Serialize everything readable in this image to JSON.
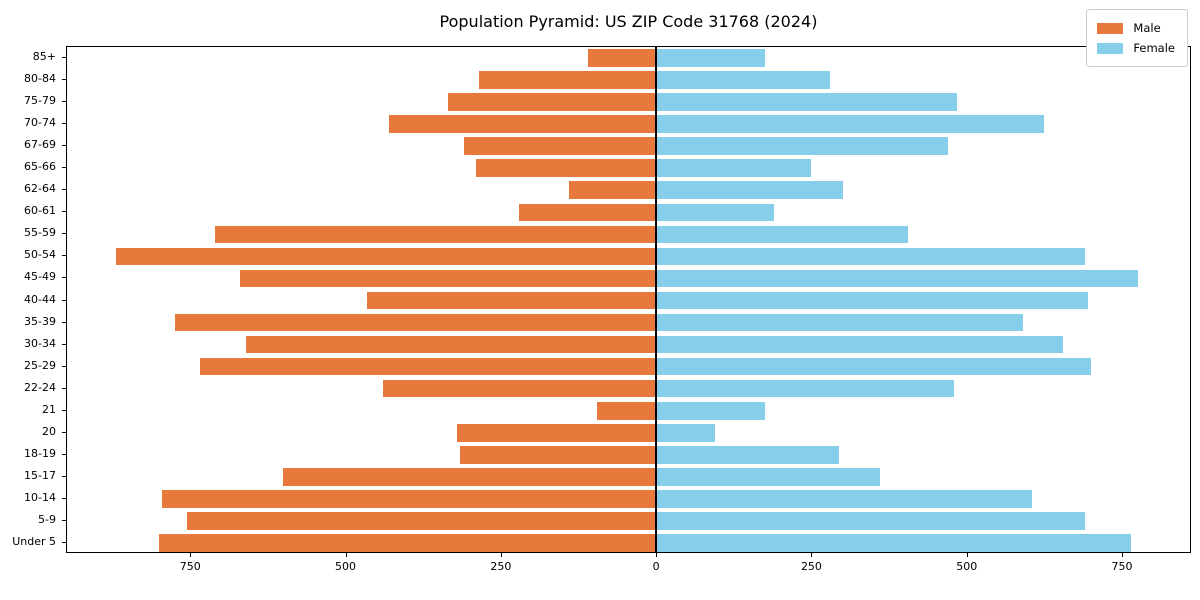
{
  "title": "Population Pyramid: US ZIP Code 31768 (2024)",
  "legend": {
    "male_label": "Male",
    "female_label": "Female",
    "position": "upper right"
  },
  "colors": {
    "male": "#e8793d",
    "female": "#87ceeb",
    "axis": "#000000",
    "background": "#ffffff"
  },
  "chart_data": {
    "type": "bar",
    "orientation": "horizontal population pyramid (male left, female right)",
    "title": "Population Pyramid: US ZIP Code 31768 (2024)",
    "xlabel": "",
    "ylabel": "",
    "grid": false,
    "legend_position": "upper right",
    "categories_top_to_bottom": [
      "85+",
      "80-84",
      "75-79",
      "70-74",
      "67-69",
      "65-66",
      "62-64",
      "60-61",
      "55-59",
      "50-54",
      "45-49",
      "40-44",
      "35-39",
      "30-34",
      "25-29",
      "22-24",
      "21",
      "20",
      "18-19",
      "15-17",
      "10-14",
      "5-9",
      "Under 5"
    ],
    "series": [
      {
        "name": "Male",
        "side": "left",
        "color": "#e8793d",
        "values": [
          110,
          285,
          335,
          430,
          310,
          290,
          140,
          220,
          710,
          870,
          670,
          465,
          775,
          660,
          735,
          440,
          95,
          320,
          315,
          600,
          795,
          755,
          800
        ]
      },
      {
        "name": "Female",
        "side": "right",
        "color": "#87ceeb",
        "values": [
          175,
          280,
          485,
          625,
          470,
          250,
          300,
          190,
          405,
          690,
          775,
          695,
          590,
          655,
          700,
          480,
          175,
          95,
          295,
          360,
          605,
          690,
          765
        ]
      }
    ],
    "x_tick_values": [
      -750,
      -500,
      -250,
      0,
      250,
      500,
      750
    ],
    "x_tick_labels": [
      "750",
      "500",
      "250",
      "0",
      "250",
      "500",
      "750"
    ],
    "xlim": [
      -950,
      861
    ],
    "bar_relative_height": 0.8
  }
}
